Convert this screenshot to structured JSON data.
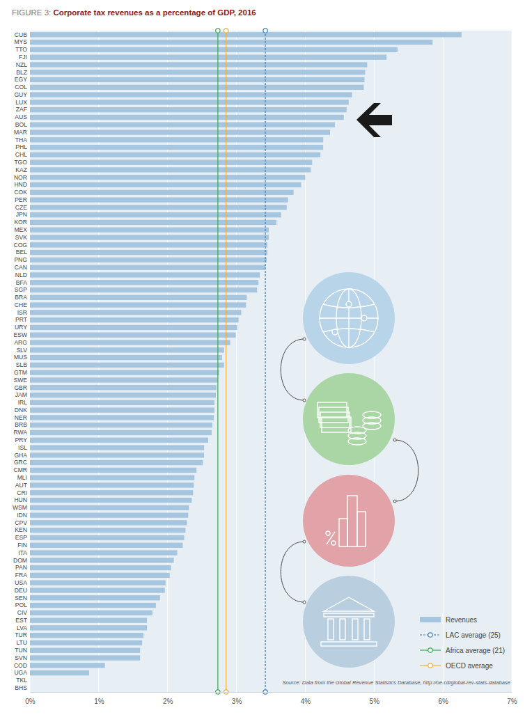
{
  "chart_data": {
    "type": "bar",
    "title": "FIGURE 3: Corporate tax revenues as a percentage of GDP, 2016",
    "orientation": "horizontal",
    "grid": true,
    "legend": "lower right",
    "categories": [
      "CUB",
      "MYS",
      "TTO",
      "FJI",
      "NZL",
      "BLZ",
      "EGY",
      "COL",
      "GUY",
      "LUX",
      "ZAF",
      "AUS",
      "BOL",
      "MAR",
      "THA",
      "PHL",
      "CHL",
      "TGO",
      "KAZ",
      "NOR",
      "HND",
      "COK",
      "PER",
      "CZE",
      "JPN",
      "KOR",
      "MEX",
      "SVK",
      "COG",
      "BEL",
      "PNG",
      "CAN",
      "NLD",
      "BFA",
      "SGP",
      "BRA",
      "CHE",
      "ISR",
      "PRT",
      "URY",
      "ESW",
      "ARG",
      "SLV",
      "MUS",
      "SLB",
      "GTM",
      "SWE",
      "GBR",
      "JAM",
      "IRL",
      "DNK",
      "NER",
      "BRB",
      "RWA",
      "PRY",
      "ISL",
      "GHA",
      "GRC",
      "CMR",
      "MLI",
      "AUT",
      "CRI",
      "HUN",
      "WSM",
      "IDN",
      "CPV",
      "KEN",
      "ESP",
      "FIN",
      "ITA",
      "DOM",
      "PAN",
      "FRA",
      "USA",
      "DEU",
      "SEN",
      "POL",
      "CIV",
      "EST",
      "LVA",
      "TUR",
      "LTU",
      "TUN",
      "SVN",
      "COD",
      "UGA",
      "TKL",
      "BHS"
    ],
    "series": [
      {
        "name": "Revenues",
        "color": "#a6c6e0",
        "values": [
          6.27,
          5.85,
          5.34,
          5.18,
          4.9,
          4.87,
          4.86,
          4.85,
          4.68,
          4.63,
          4.6,
          4.56,
          4.43,
          4.36,
          4.26,
          4.26,
          4.22,
          4.1,
          4.08,
          4.0,
          3.94,
          3.83,
          3.75,
          3.73,
          3.65,
          3.58,
          3.47,
          3.47,
          3.45,
          3.45,
          3.44,
          3.42,
          3.34,
          3.32,
          3.3,
          3.15,
          3.14,
          3.07,
          3.03,
          3.01,
          2.99,
          2.91,
          2.82,
          2.79,
          2.82,
          2.75,
          2.73,
          2.71,
          2.7,
          2.68,
          2.68,
          2.67,
          2.65,
          2.64,
          2.59,
          2.53,
          2.53,
          2.51,
          2.42,
          2.39,
          2.38,
          2.37,
          2.35,
          2.31,
          2.3,
          2.28,
          2.26,
          2.24,
          2.22,
          2.14,
          2.09,
          2.05,
          2.03,
          1.97,
          1.96,
          1.89,
          1.83,
          1.78,
          1.7,
          1.7,
          1.65,
          1.63,
          1.6,
          1.6,
          1.09,
          0.86,
          0,
          0
        ]
      }
    ],
    "averages": [
      {
        "name": "LAC average (25)",
        "color": "#3a7fc1",
        "line_style": "dashed",
        "value": 3.42
      },
      {
        "name": "Africa average (21)",
        "color": "#3aa655",
        "line_style": "solid",
        "value": 2.73
      },
      {
        "name": "OECD average",
        "color": "#f0b030",
        "line_style": "solid",
        "value": 2.85
      }
    ],
    "xlim": [
      0,
      7
    ],
    "xticks": [
      {
        "value": 0,
        "label": "0%"
      },
      {
        "value": 1,
        "label": "1%"
      },
      {
        "value": 2,
        "label": "2%"
      },
      {
        "value": 3,
        "label": "3%"
      },
      {
        "value": 4,
        "label": "4%"
      },
      {
        "value": 5,
        "label": "5%"
      },
      {
        "value": 6,
        "label": "6%"
      },
      {
        "value": 7,
        "label": "7%"
      }
    ],
    "annotations": [
      "Source: Data from the Global Revenue Statistics Database, http://oe.cd/global-rev-stats-database"
    ]
  }
}
